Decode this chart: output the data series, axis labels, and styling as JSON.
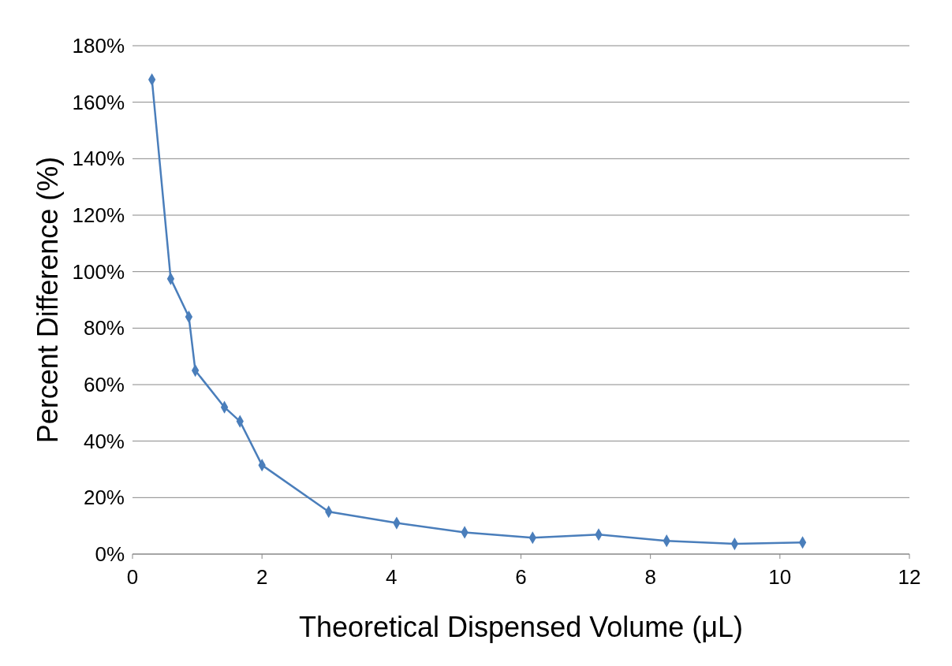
{
  "chart_data": {
    "type": "line",
    "xlabel": "Theoretical Dispensed Volume (μL)",
    "ylabel": "Percent Difference (%)",
    "x": [
      0.3,
      0.59,
      0.87,
      0.97,
      1.42,
      1.66,
      2.0,
      3.03,
      4.08,
      5.13,
      6.18,
      7.2,
      8.25,
      9.3,
      10.35
    ],
    "series": [
      {
        "color": "#4a7ebb",
        "values": [
          168,
          97.5,
          84,
          65,
          52,
          47,
          31.5,
          15,
          11,
          7.7,
          5.8,
          6.9,
          4.7,
          3.6,
          4.1
        ]
      }
    ],
    "xlim": [
      0,
      12
    ],
    "xticks": [
      0,
      2,
      4,
      6,
      8,
      10,
      12
    ],
    "ylim": [
      0,
      180
    ],
    "yticks": [
      {
        "value": 0,
        "label": "0%"
      },
      {
        "value": 20,
        "label": "20%"
      },
      {
        "value": 40,
        "label": "40%"
      },
      {
        "value": 60,
        "label": "60%"
      },
      {
        "value": 80,
        "label": "80%"
      },
      {
        "value": 100,
        "label": "100%"
      },
      {
        "value": 120,
        "label": "120%"
      },
      {
        "value": 140,
        "label": "140%"
      },
      {
        "value": 160,
        "label": "160%"
      },
      {
        "value": 180,
        "label": "180%"
      }
    ],
    "grid": "y",
    "marker": "diamond",
    "line_style": "solid"
  }
}
